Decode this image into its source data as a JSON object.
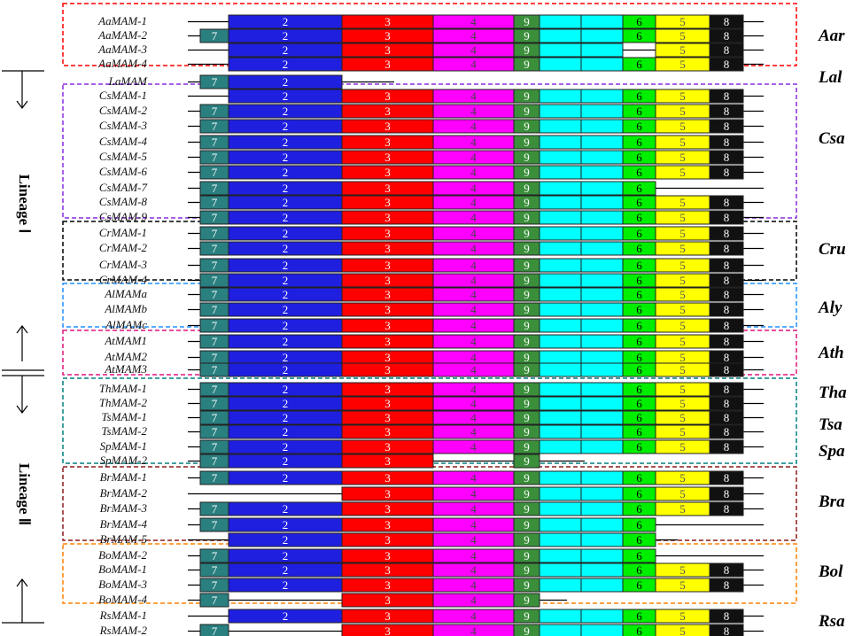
{
  "colors": {
    "7": "#2a7f7f",
    "2": "#1f1fe0",
    "3": "#ff0000",
    "4": "#ff00ff",
    "9": "#3b8f3b",
    "c": "#00ffff",
    "6": "#00ee00",
    "5": "#ffff00",
    "8": "#111111"
  },
  "segment_text_colors": {
    "7": "#ffffff",
    "2": "#ffffff",
    "3": "#ffffff",
    "4": "#444444",
    "9": "#ffffff",
    "6": "#000000",
    "5": "#555555",
    "8": "#ffffff"
  },
  "lineages": [
    {
      "label": "Lineage Ⅰ"
    },
    {
      "label": "Lineage Ⅱ"
    }
  ],
  "genes": [
    {
      "name": "AaMAM-1",
      "domains": [
        "2",
        "3",
        "4",
        "9",
        "c",
        "c",
        "6",
        "5",
        "8"
      ]
    },
    {
      "name": "AaMAM-2",
      "domains": [
        "7",
        "2",
        "3",
        "4",
        "9",
        "c",
        "c",
        "6",
        "5",
        "8"
      ]
    },
    {
      "name": "AaMAM-3",
      "domains": [
        "2",
        "3",
        "4",
        "9",
        "c",
        "c",
        "5",
        "8"
      ]
    },
    {
      "name": "AaMAM-4",
      "domains": [
        "2",
        "3",
        "4",
        "9",
        "c",
        "c",
        "6",
        "5",
        "8"
      ]
    },
    {
      "name": "LaMAM",
      "domains": [
        "7",
        "2"
      ]
    },
    {
      "name": "CsMAM-1",
      "domains": [
        "2",
        "3",
        "4",
        "9",
        "c",
        "c",
        "6",
        "5",
        "8"
      ]
    },
    {
      "name": "CsMAM-2",
      "domains": [
        "7",
        "2",
        "3",
        "4",
        "9",
        "c",
        "c",
        "6",
        "5",
        "8"
      ]
    },
    {
      "name": "CsMAM-3",
      "domains": [
        "7",
        "2",
        "3",
        "4",
        "9",
        "c",
        "c",
        "6",
        "5",
        "8"
      ]
    },
    {
      "name": "CsMAM-4",
      "domains": [
        "7",
        "2",
        "3",
        "4",
        "9",
        "c",
        "c",
        "6",
        "5",
        "8"
      ]
    },
    {
      "name": "CsMAM-5",
      "domains": [
        "7",
        "2",
        "3",
        "4",
        "9",
        "c",
        "c",
        "6",
        "5",
        "8"
      ]
    },
    {
      "name": "CsMAM-6",
      "domains": [
        "7",
        "2",
        "3",
        "4",
        "9",
        "c",
        "c",
        "6",
        "5",
        "8"
      ]
    },
    {
      "name": "CsMAM-7",
      "domains": [
        "7",
        "2",
        "3",
        "4",
        "9",
        "c",
        "c",
        "6"
      ]
    },
    {
      "name": "CsMAM-8",
      "domains": [
        "7",
        "2",
        "3",
        "4",
        "9",
        "c",
        "c",
        "6",
        "5",
        "8"
      ]
    },
    {
      "name": "CsMAM-9",
      "domains": [
        "7",
        "2",
        "3",
        "4",
        "9",
        "c",
        "c",
        "6",
        "5",
        "8"
      ]
    },
    {
      "name": "CrMAM-1",
      "domains": [
        "7",
        "2",
        "3",
        "4",
        "9",
        "c",
        "c",
        "6",
        "5",
        "8"
      ]
    },
    {
      "name": "CrMAM-2",
      "domains": [
        "7",
        "2",
        "3",
        "4",
        "9",
        "c",
        "c",
        "6",
        "5",
        "8"
      ]
    },
    {
      "name": "CrMAM-3",
      "domains": [
        "7",
        "2",
        "3",
        "4",
        "9",
        "c",
        "c",
        "6",
        "5",
        "8"
      ]
    },
    {
      "name": "CrMAM-4",
      "domains": [
        "7",
        "2",
        "3",
        "4",
        "9",
        "c",
        "c",
        "6",
        "5",
        "8"
      ]
    },
    {
      "name": "AlMAMa",
      "domains": [
        "7",
        "2",
        "3",
        "4",
        "9",
        "c",
        "c",
        "6",
        "5",
        "8"
      ]
    },
    {
      "name": "AlMAMb",
      "domains": [
        "7",
        "2",
        "3",
        "4",
        "9",
        "c",
        "c",
        "6",
        "5",
        "8"
      ]
    },
    {
      "name": "AlMAMc",
      "domains": [
        "7",
        "2",
        "3",
        "4",
        "9",
        "c",
        "c",
        "6",
        "5",
        "8"
      ]
    },
    {
      "name": "AtMAM1",
      "domains": [
        "7",
        "2",
        "3",
        "4",
        "9",
        "c",
        "c",
        "6",
        "5",
        "8"
      ]
    },
    {
      "name": "AtMAM2",
      "domains": [
        "7",
        "2",
        "3",
        "4",
        "9",
        "c",
        "c",
        "6",
        "5",
        "8"
      ]
    },
    {
      "name": "AtMAM3",
      "domains": [
        "7",
        "2",
        "3",
        "4",
        "9",
        "c",
        "c",
        "6",
        "5",
        "8"
      ]
    },
    {
      "name": "ThMAM-1",
      "domains": [
        "7",
        "2",
        "3",
        "4",
        "9",
        "c",
        "c",
        "6",
        "5",
        "8"
      ]
    },
    {
      "name": "ThMAM-2",
      "domains": [
        "7",
        "2",
        "3",
        "4",
        "9",
        "c",
        "c",
        "6",
        "5",
        "8"
      ]
    },
    {
      "name": "TsMAM-1",
      "domains": [
        "7",
        "2",
        "3",
        "4",
        "9",
        "c",
        "c",
        "6",
        "5",
        "8"
      ]
    },
    {
      "name": "TsMAM-2",
      "domains": [
        "7",
        "2",
        "3",
        "4",
        "9",
        "c",
        "c",
        "6",
        "5",
        "8"
      ]
    },
    {
      "name": "SpMAM-1",
      "domains": [
        "7",
        "2",
        "3",
        "4",
        "9",
        "c",
        "c",
        "6",
        "5",
        "8"
      ]
    },
    {
      "name": "SpMAM-2",
      "domains": [
        "7",
        "2",
        "3",
        "9"
      ]
    },
    {
      "name": "BrMAM-1",
      "domains": [
        "7",
        "2",
        "3",
        "4",
        "9",
        "c",
        "c",
        "6",
        "5",
        "8"
      ]
    },
    {
      "name": "BrMAM-2",
      "domains": [
        "3",
        "4",
        "9",
        "c",
        "c",
        "6",
        "5",
        "8"
      ]
    },
    {
      "name": "BrMAM-3",
      "domains": [
        "7",
        "2",
        "3",
        "4",
        "9",
        "c",
        "c",
        "6",
        "5",
        "8"
      ]
    },
    {
      "name": "BrMAM-4",
      "domains": [
        "7",
        "2",
        "3",
        "4",
        "9",
        "c",
        "c",
        "6"
      ]
    },
    {
      "name": "BrMAM-5",
      "domains": [
        "2",
        "3",
        "4",
        "9",
        "c",
        "c",
        "6"
      ]
    },
    {
      "name": "BoMAM-2",
      "domains": [
        "7",
        "2",
        "3",
        "4",
        "9",
        "c",
        "c",
        "6"
      ]
    },
    {
      "name": "BoMAM-1",
      "domains": [
        "7",
        "2",
        "3",
        "4",
        "9",
        "c",
        "c",
        "6",
        "5",
        "8"
      ]
    },
    {
      "name": "BoMAM-3",
      "domains": [
        "7",
        "2",
        "3",
        "4",
        "9",
        "c",
        "c",
        "6",
        "5",
        "8"
      ]
    },
    {
      "name": "BoMAM-4",
      "domains": [
        "7",
        "3",
        "4",
        "9"
      ]
    },
    {
      "name": "RsMAM-1",
      "domains": [
        "2",
        "3",
        "4",
        "9",
        "c",
        "c",
        "6",
        "5",
        "8"
      ]
    },
    {
      "name": "RsMAM-2",
      "domains": [
        "7",
        "3",
        "4",
        "9",
        "c",
        "c",
        "6",
        "5",
        "8"
      ]
    }
  ],
  "species": [
    {
      "label": "Aar",
      "color": "#ff0000"
    },
    {
      "label": "Lal",
      "color": ""
    },
    {
      "label": "Csa",
      "color": "#8a2be2"
    },
    {
      "label": "Cru",
      "color": "#000000"
    },
    {
      "label": "Aly",
      "color": "#1e90ff"
    },
    {
      "label": "Ath",
      "color": "#e0157a"
    },
    {
      "label": "Tha",
      "color": "#008080"
    },
    {
      "label": "Tsa",
      "color": ""
    },
    {
      "label": "Spa",
      "color": ""
    },
    {
      "label": "Bra",
      "color": "#8b1a1a"
    },
    {
      "label": "Bol",
      "color": "#ff8000"
    },
    {
      "label": "Rsa",
      "color": ""
    }
  ]
}
